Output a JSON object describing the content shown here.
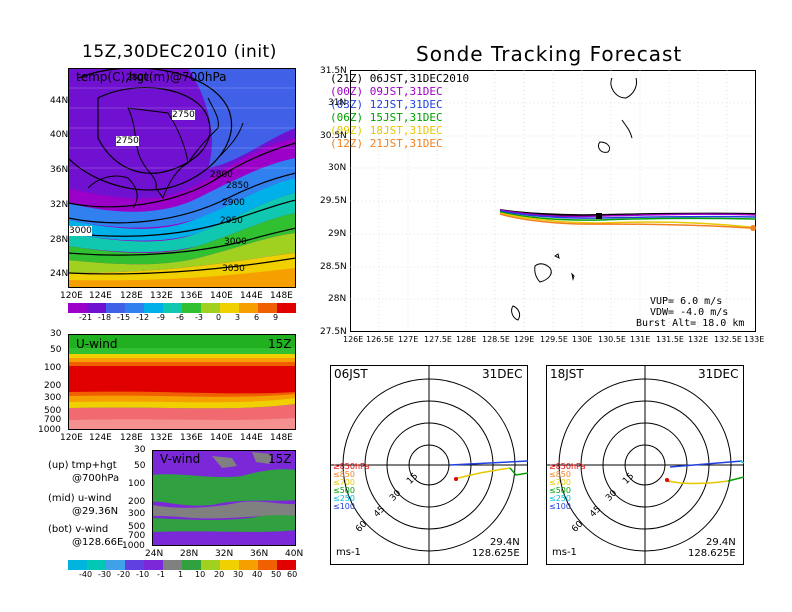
{
  "left_top": {
    "title": "15Z,30DEC2010 (init)",
    "panel_label": "temp(C),hgt(m)@700hPa",
    "lat_labels": [
      "44N",
      "40N",
      "36N",
      "32N",
      "28N",
      "24N"
    ],
    "lon_labels": [
      "120E",
      "124E",
      "128E",
      "132E",
      "136E",
      "140E",
      "144E",
      "148E"
    ],
    "contour_labels": [
      "2800",
      "2750",
      "2750",
      "2800",
      "2850",
      "2900",
      "2950",
      "3000",
      "3000",
      "3050",
      "3000"
    ],
    "colorbar_labels": [
      "-21",
      "-18",
      "-15",
      "-12",
      "-9",
      "-6",
      "-3",
      "0",
      "3",
      "6",
      "9"
    ]
  },
  "left_mid": {
    "panel_label": "U-wind",
    "time_label": "15Z",
    "p_labels": [
      "30",
      "50",
      "100",
      "200",
      "300",
      "500",
      "700",
      "1000"
    ],
    "lon_labels": [
      "120E",
      "124E",
      "128E",
      "132E",
      "136E",
      "140E",
      "144E",
      "148E"
    ]
  },
  "left_bot": {
    "panel_label": "V-wind",
    "time_label": "15Z",
    "p_labels": [
      "30",
      "50",
      "100",
      "200",
      "300",
      "500",
      "700",
      "1000"
    ],
    "lat_labels": [
      "24N",
      "28N",
      "32N",
      "36N",
      "40N"
    ],
    "colorbar_labels": [
      "-40",
      "-30",
      "-20",
      "-10",
      "-1",
      "1",
      "10",
      "20",
      "30",
      "40",
      "50",
      "60"
    ]
  },
  "notes": {
    "up": "(up) tmp+hgt",
    "up2": "@700hPa",
    "mid": "(mid) u-wind",
    "mid2": "@29.36N",
    "bot": "(bot) v-wind",
    "bot2": "@128.66E"
  },
  "right_top": {
    "title": "Sonde Tracking Forecast",
    "lat_labels": [
      "31.5N",
      "31N",
      "30.5N",
      "30N",
      "29.5N",
      "29N",
      "28.5N",
      "28N",
      "27.5N"
    ],
    "lon_labels": [
      "126E",
      "126.5E",
      "127E",
      "127.5E",
      "128E",
      "128.5E",
      "129E",
      "129.5E",
      "130E",
      "130.5E",
      "131E",
      "131.5E",
      "132E",
      "132.5E",
      "133E"
    ],
    "legend": [
      {
        "text": "(21Z) 06JST,31DEC2010",
        "color": "#000000"
      },
      {
        "text": "(00Z) 09JST,31DEC",
        "color": "#a000c8"
      },
      {
        "text": "(03Z) 12JST,31DEC",
        "color": "#2040e0"
      },
      {
        "text": "(06Z) 15JST,31DEC",
        "color": "#00a000"
      },
      {
        "text": "(09Z) 18JST,31DEC",
        "color": "#e6c800"
      },
      {
        "text": "(12Z) 21JST,31DEC",
        "color": "#f08020"
      }
    ],
    "vup": "VUP= 6.0 m/s",
    "vdw": "VDW= -4.0 m/s",
    "burst": "Burst Alt= 18.0 km"
  },
  "hodo_left": {
    "time": "06JST",
    "date": "31DEC",
    "ring_labels": [
      "15",
      "30",
      "45",
      "60"
    ],
    "levels": [
      "≥850hPa",
      "≤850",
      "≤700",
      "≤500",
      "≤250",
      "≤100"
    ],
    "level_colors": [
      "#e00000",
      "#f08020",
      "#e6c800",
      "#00a000",
      "#00c0e0",
      "#2040e0"
    ],
    "unit": "ms-1",
    "lat": "29.4N",
    "lon": "128.625E"
  },
  "hodo_right": {
    "time": "18JST",
    "date": "31DEC",
    "ring_labels": [
      "15",
      "30",
      "45",
      "60"
    ],
    "levels": [
      "≥850hPa",
      "≤850",
      "≤700",
      "≤500",
      "≤250",
      "≤100"
    ],
    "level_colors": [
      "#e00000",
      "#f08020",
      "#e6c800",
      "#00a000",
      "#00c0e0",
      "#2040e0"
    ],
    "unit": "ms-1",
    "lat": "29.4N",
    "lon": "128.625E"
  }
}
